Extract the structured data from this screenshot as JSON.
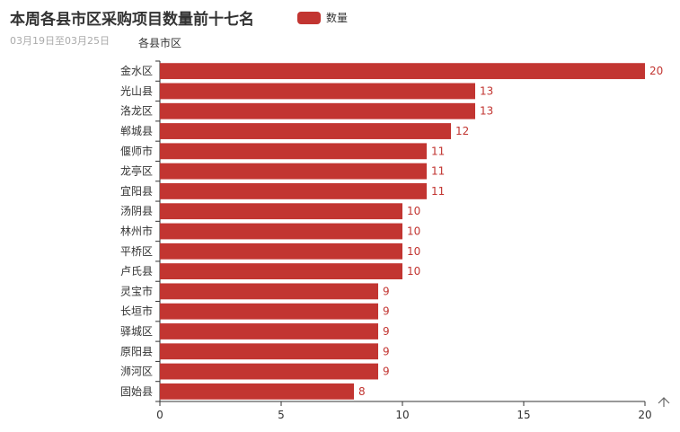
{
  "title": "本周各县市区采购项目数量前十七名",
  "subtitle": "03月19日至03月25日",
  "legend": {
    "label": "数量",
    "color": "#c23531"
  },
  "toolbox_icon": "save-image-icon",
  "chart_data": {
    "type": "bar",
    "orientation": "horizontal",
    "categories": [
      "金水区",
      "光山县",
      "洛龙区",
      "郸城县",
      "偃师市",
      "龙亭区",
      "宜阳县",
      "汤阴县",
      "林州市",
      "平桥区",
      "卢氏县",
      "灵宝市",
      "长垣市",
      "驿城区",
      "原阳县",
      "浉河区",
      "固始县"
    ],
    "series": [
      {
        "name": "数量",
        "values": [
          20,
          13,
          13,
          12,
          11,
          11,
          11,
          10,
          10,
          10,
          10,
          9,
          9,
          9,
          9,
          9,
          8
        ]
      }
    ],
    "xlim": [
      0,
      20
    ],
    "xticks": [
      0,
      5,
      10,
      15,
      20
    ],
    "xlabel": "",
    "ylabel": "各县市区",
    "grid": false,
    "legend_position": "top",
    "bar_color": "#c23531",
    "label_color": "#c23531"
  }
}
